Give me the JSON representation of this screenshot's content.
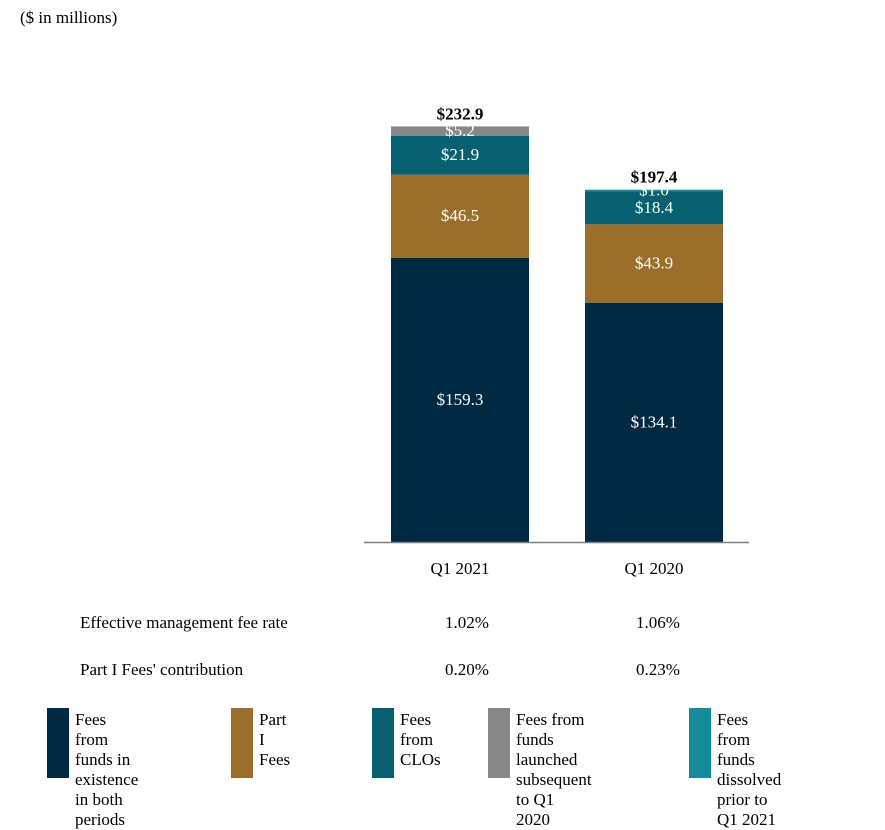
{
  "units_note": "($ in millions)",
  "colors": {
    "fees_existing": "#002a42",
    "part_i": "#9b6e2b",
    "clos": "#06606f",
    "launched": "#878787",
    "dissolved": "#168a9b",
    "axis": "#7f7f7f"
  },
  "chart_data": {
    "type": "bar",
    "stacked": true,
    "categories": [
      "Q1 2021",
      "Q1 2020"
    ],
    "series": [
      {
        "name": "Fees from funds in existence in both periods",
        "values": [
          159.3,
          134.1
        ],
        "labels": [
          "$159.3",
          "$134.1"
        ],
        "color": "#002a42"
      },
      {
        "name": "Part I Fees",
        "values": [
          46.5,
          43.9
        ],
        "labels": [
          "$46.5",
          "$43.9"
        ],
        "color": "#9b6e2b"
      },
      {
        "name": "Fees from CLOs",
        "values": [
          21.9,
          18.4
        ],
        "labels": [
          "$21.9",
          "$18.4"
        ],
        "color": "#06606f"
      },
      {
        "name": "Fees from funds launched subsequent to Q1 2020",
        "values": [
          5.2,
          0
        ],
        "labels": [
          "$5.2",
          ""
        ],
        "color": "#878787"
      },
      {
        "name": "Fees from funds dissolved prior to Q1 2021",
        "values": [
          0,
          1.0
        ],
        "labels": [
          "",
          "$1.0"
        ],
        "color": "#168a9b"
      }
    ],
    "totals": [
      "$232.9",
      "$197.4"
    ],
    "ylim": [
      0,
      240
    ],
    "grid": false,
    "legend_position": "bottom"
  },
  "metrics": [
    {
      "label": "Effective management fee rate",
      "values": [
        "1.02%",
        "1.06%"
      ]
    },
    {
      "label": "Part I Fees' contribution",
      "values": [
        "0.20%",
        "0.23%"
      ]
    }
  ],
  "legend": [
    {
      "text": "Fees from funds in\nexistence in both\nperiods",
      "color": "#002a42"
    },
    {
      "text": "Part I\nFees",
      "color": "#9b6e2b"
    },
    {
      "text": "Fees from\nCLOs",
      "color": "#06606f"
    },
    {
      "text": "Fees from funds\nlaunched subsequent\nto Q1 2020",
      "color": "#878787"
    },
    {
      "text": "Fees from funds\ndissolved prior to\nQ1 2021",
      "color": "#168a9b"
    }
  ]
}
